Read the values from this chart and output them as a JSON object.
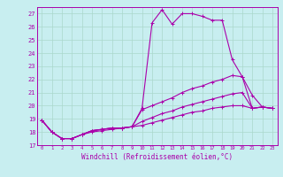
{
  "xlabel": "Windchill (Refroidissement éolien,°C)",
  "bg_color": "#c8eef0",
  "line_color": "#aa00aa",
  "grid_color": "#aad8cc",
  "xmin": -0.5,
  "xmax": 23.5,
  "ymin": 17,
  "ymax": 27.5,
  "lines": [
    {
      "x": [
        0,
        1,
        2,
        3,
        4,
        5,
        6,
        7,
        8,
        9,
        10,
        11,
        12,
        13,
        14,
        15,
        16,
        17,
        18,
        19,
        20,
        21,
        22,
        23
      ],
      "y": [
        18.9,
        18.0,
        17.5,
        17.5,
        17.8,
        18.1,
        18.2,
        18.3,
        18.3,
        18.4,
        19.8,
        26.3,
        27.3,
        26.2,
        27.0,
        27.0,
        26.8,
        26.5,
        26.5,
        23.5,
        22.2,
        20.8,
        19.9,
        19.8
      ]
    },
    {
      "x": [
        0,
        1,
        2,
        3,
        4,
        5,
        6,
        7,
        8,
        9,
        10,
        11,
        12,
        13,
        14,
        15,
        16,
        17,
        18,
        19,
        20,
        21,
        22,
        23
      ],
      "y": [
        18.9,
        18.0,
        17.5,
        17.5,
        17.8,
        18.1,
        18.2,
        18.3,
        18.3,
        18.4,
        19.7,
        20.0,
        20.3,
        20.6,
        21.0,
        21.3,
        21.5,
        21.8,
        22.0,
        22.3,
        22.2,
        19.8,
        19.9,
        19.8
      ]
    },
    {
      "x": [
        0,
        1,
        2,
        3,
        4,
        5,
        6,
        7,
        8,
        9,
        10,
        11,
        12,
        13,
        14,
        15,
        16,
        17,
        18,
        19,
        20,
        21,
        22,
        23
      ],
      "y": [
        18.9,
        18.0,
        17.5,
        17.5,
        17.8,
        18.1,
        18.2,
        18.3,
        18.3,
        18.4,
        18.8,
        19.1,
        19.4,
        19.6,
        19.9,
        20.1,
        20.3,
        20.5,
        20.7,
        20.9,
        21.0,
        19.8,
        19.9,
        19.8
      ]
    },
    {
      "x": [
        0,
        1,
        2,
        3,
        4,
        5,
        6,
        7,
        8,
        9,
        10,
        11,
        12,
        13,
        14,
        15,
        16,
        17,
        18,
        19,
        20,
        21,
        22,
        23
      ],
      "y": [
        18.9,
        18.0,
        17.5,
        17.5,
        17.8,
        18.0,
        18.1,
        18.2,
        18.3,
        18.4,
        18.5,
        18.7,
        18.9,
        19.1,
        19.3,
        19.5,
        19.6,
        19.8,
        19.9,
        20.0,
        20.0,
        19.8,
        19.9,
        19.8
      ]
    }
  ]
}
